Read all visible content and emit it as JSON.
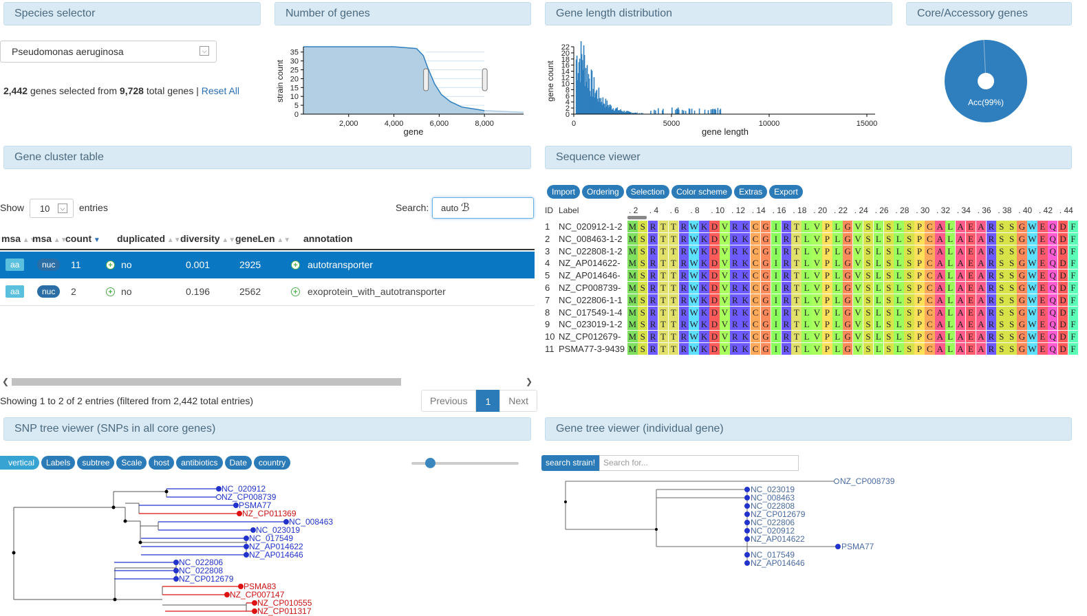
{
  "panels": {
    "species": "Species selector",
    "num_genes": "Number of genes",
    "gene_len": "Gene length distribution",
    "core_acc": "Core/Accessory genes",
    "cluster_table": "Gene cluster table",
    "seq_viewer": "Sequence viewer",
    "snp_tree": "SNP tree viewer (SNPs in all core genes)",
    "gene_tree": "Gene tree viewer (individual gene)"
  },
  "species": {
    "selected": "Pseudomonas aeruginosa",
    "selected_count": "2,442",
    "total_count": "9,728",
    "text_mid": "genes selected from",
    "text_end": "total genes",
    "sep": "|",
    "reset": "Reset All"
  },
  "pie": {
    "label": "Acc(99%)",
    "acc_fraction": 0.99,
    "color": "#2f7fbe"
  },
  "table": {
    "show_label": "Show",
    "show_value": "10",
    "entries_label": "entries",
    "search_label": "Search:",
    "search_value": "auto",
    "columns": [
      "msa",
      "msa",
      "count",
      "duplicated",
      "diversity",
      "geneLen",
      "annotation"
    ],
    "rows": [
      {
        "aa": "aa",
        "nuc": "nuc",
        "count": "11",
        "dup": "no",
        "diversity": "0.001",
        "geneLen": "2925",
        "annotation": "autotransporter"
      },
      {
        "aa": "aa",
        "nuc": "nuc",
        "count": "2",
        "dup": "no",
        "diversity": "0.196",
        "geneLen": "2562",
        "annotation": "exoprotein_with_autotransporter"
      }
    ],
    "info": "Showing 1 to 2 of 2 entries (filtered from 2,442 total entries)",
    "prev": "Previous",
    "page": "1",
    "next": "Next"
  },
  "seq": {
    "buttons": [
      "Import",
      "Ordering",
      "Selection",
      "Color scheme",
      "Extras",
      "Export"
    ],
    "id_label": "ID",
    "label_label": "Label",
    "ruler": [
      ". 2",
      ". 4",
      ". 6",
      ". 8",
      ". 10",
      ". 12",
      ". 14",
      ". 16",
      ". 18",
      ". 20",
      ". 22",
      ". 24",
      ". 26",
      ". 28",
      ". 30",
      ". 32",
      ". 34",
      ". 36",
      ". 38",
      ". 40",
      ". 42",
      ". 44"
    ],
    "ids": [
      "1",
      "2",
      "3",
      "4",
      "5",
      "6",
      "7",
      "8",
      "9",
      "10",
      "11"
    ],
    "labels": [
      "NC_020912-1-2",
      "NC_008463-1-2",
      "NC_022808-1-2",
      "NZ_AP014622-",
      "NZ_AP014646-",
      "NZ_CP008739-",
      "NC_022806-1-1",
      "NC_017549-1-4",
      "NC_023019-1-2",
      "NZ_CP012679-",
      "PSMA77-3-9439"
    ],
    "sequence": "MSRTTRWKDVRKCGIRTLVPLGVSLSLSPCALAEARSSGWEQDF"
  },
  "snp": {
    "buttons": [
      "vertical",
      "Labels",
      "subtree",
      "Scale",
      "host",
      "antibiotics",
      "Date",
      "country"
    ],
    "tips": [
      {
        "name": "NC_020912",
        "color": "blue"
      },
      {
        "name": "NZ_CP008739",
        "color": "blue"
      },
      {
        "name": "PSMA77",
        "color": "blue"
      },
      {
        "name": "NZ_CP011369",
        "color": "red"
      },
      {
        "name": "NC_008463",
        "color": "blue"
      },
      {
        "name": "NC_023019",
        "color": "blue"
      },
      {
        "name": "NC_017549",
        "color": "blue"
      },
      {
        "name": "NZ_AP014622",
        "color": "blue"
      },
      {
        "name": "NZ_AP014646",
        "color": "blue"
      },
      {
        "name": "NC_022806",
        "color": "blue"
      },
      {
        "name": "NC_022808",
        "color": "blue"
      },
      {
        "name": "NZ_CP012679",
        "color": "blue"
      },
      {
        "name": "PSMA83",
        "color": "red"
      },
      {
        "name": "NZ_CP007147",
        "color": "red"
      },
      {
        "name": "NZ_CP010555",
        "color": "red"
      },
      {
        "name": "NZ_CP011317",
        "color": "red"
      }
    ]
  },
  "gene_tree": {
    "search_btn": "search strain!",
    "search_placeholder": "Search for...",
    "tips": [
      "NZ_CP008739",
      "NC_023019",
      "NC_008463",
      "NC_022808",
      "NZ_CP012679",
      "NC_022806",
      "NC_020912",
      "NZ_AP014622",
      "PSMA77",
      "NC_017549",
      "NZ_AP014646"
    ]
  },
  "chart_data": [
    {
      "type": "area",
      "xlabel": "gene",
      "ylabel": "strain count",
      "xticks": [
        "2,000",
        "4,000",
        "6,000",
        "8,000"
      ],
      "yticks": [
        "0",
        "5",
        "10",
        "15",
        "20",
        "25",
        "30",
        "35"
      ],
      "xlim": [
        0,
        9728
      ],
      "ylim": [
        0,
        38
      ],
      "x": [
        0,
        4000,
        5000,
        5300,
        5500,
        5800,
        6100,
        6500,
        7000,
        7500,
        8000,
        9728
      ],
      "y": [
        38,
        38,
        37,
        33,
        26,
        17,
        11,
        7,
        4,
        3,
        2,
        1
      ],
      "selection": [
        5400,
        8000
      ]
    },
    {
      "type": "bar",
      "xlabel": "gene length",
      "ylabel": "gene count",
      "xticks": [
        "0",
        "5000",
        "10000",
        "15000"
      ],
      "yticks": [
        "0",
        "2",
        "4",
        "6",
        "8",
        "10",
        "12",
        "14",
        "16",
        "18",
        "20",
        "22"
      ],
      "xlim": [
        0,
        15000
      ],
      "ylim": [
        0,
        22
      ]
    },
    {
      "type": "pie",
      "categories": [
        "Acc",
        "Core"
      ],
      "values": [
        99,
        1
      ]
    }
  ]
}
